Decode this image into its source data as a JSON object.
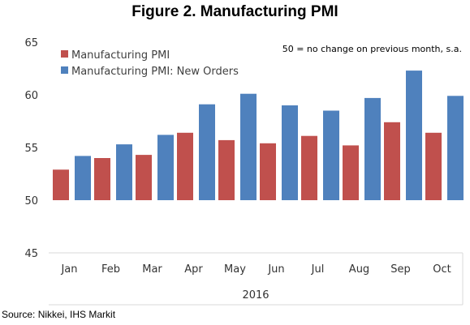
{
  "chart_data": {
    "type": "bar",
    "title": "Figure 2. Manufacturing PMI",
    "note": "50 = no change on previous month, s.a.",
    "source": "Source: Nikkei, IHS Markit",
    "year_label": "2016",
    "categories": [
      "Jan",
      "Feb",
      "Mar",
      "Apr",
      "May",
      "Jun",
      "Jul",
      "Aug",
      "Sep",
      "Oct"
    ],
    "series": [
      {
        "name": "Manufacturing PMI",
        "color": "#C0504D",
        "values": [
          52.9,
          54.0,
          54.3,
          56.4,
          55.7,
          55.4,
          56.1,
          55.2,
          57.4,
          56.4
        ]
      },
      {
        "name": "Manufacturing PMI: New Orders",
        "color": "#4F81BD",
        "values": [
          54.2,
          55.3,
          56.2,
          59.1,
          60.1,
          59.0,
          58.5,
          59.7,
          62.3,
          59.9
        ]
      }
    ],
    "yticks": [
      "65",
      "60",
      "55",
      "50",
      "45"
    ],
    "ylim": [
      45,
      65
    ],
    "grid": false,
    "legend_position": "top-left"
  }
}
